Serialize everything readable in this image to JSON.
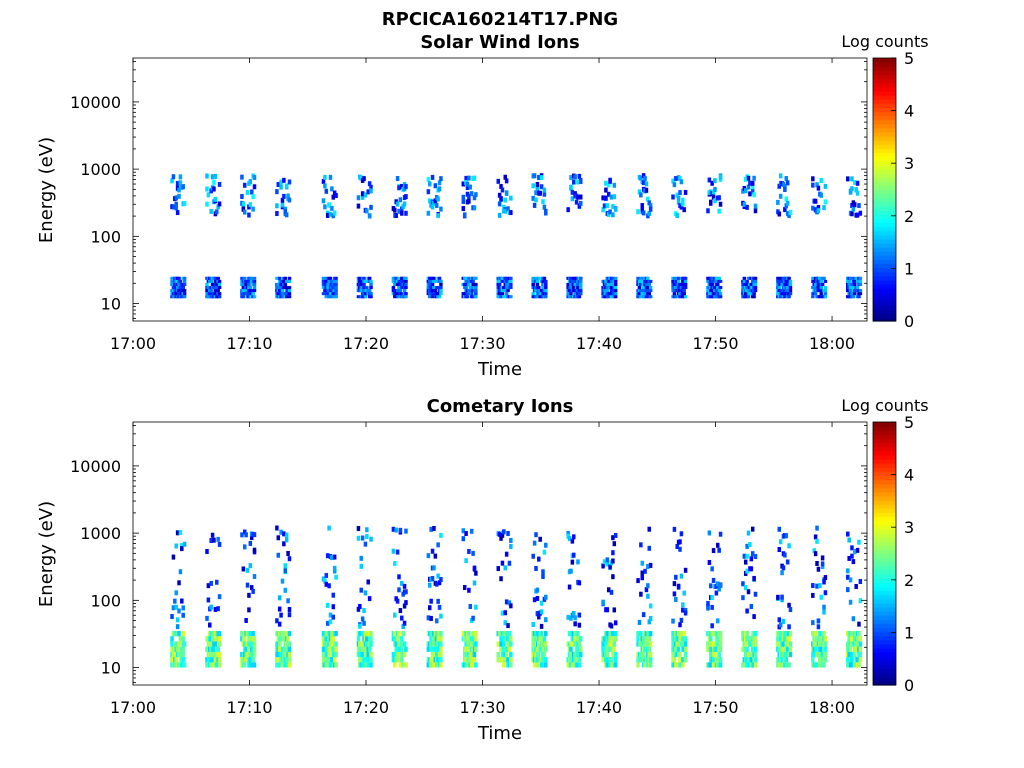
{
  "figure": {
    "title": "RPCICA160214T17.PNG"
  },
  "colorbar": {
    "label": "Log counts",
    "ticks": [
      "5",
      "4",
      "3",
      "2",
      "1",
      "0"
    ]
  },
  "chart_data": [
    {
      "type": "heatmap",
      "title": "Solar Wind Ions",
      "xlabel": "Time",
      "ylabel": "Energy (eV)",
      "x_ticks": [
        "17:00",
        "17:10",
        "17:20",
        "17:30",
        "17:40",
        "17:50",
        "18:00"
      ],
      "x_range": [
        "17:00",
        "18:03"
      ],
      "y_ticks": [
        "10",
        "100",
        "1000",
        "10000"
      ],
      "y_scale": "log",
      "y_range": [
        5.5,
        45000
      ],
      "colorbar": {
        "label": "Log counts",
        "range": [
          0,
          5
        ],
        "colormap": "jet"
      },
      "sweep_start_times": [
        "17:03",
        "17:06",
        "17:09",
        "17:12",
        "17:16",
        "17:19",
        "17:22",
        "17:25",
        "17:28",
        "17:31",
        "17:34",
        "17:37",
        "17:40",
        "17:43",
        "17:46",
        "17:49",
        "17:52",
        "17:55",
        "17:58",
        "18:01"
      ],
      "low_energy_band_eV": [
        12,
        25
      ],
      "low_energy_level": 1.0,
      "high_energy_band_eV": [
        200,
        800
      ],
      "high_energy_level": 1.1
    },
    {
      "type": "heatmap",
      "title": "Cometary Ions",
      "xlabel": "Time",
      "ylabel": "Energy (eV)",
      "x_ticks": [
        "17:00",
        "17:10",
        "17:20",
        "17:30",
        "17:40",
        "17:50",
        "18:00"
      ],
      "x_range": [
        "17:00",
        "18:03"
      ],
      "y_ticks": [
        "10",
        "100",
        "1000",
        "10000"
      ],
      "y_scale": "log",
      "y_range": [
        5.5,
        45000
      ],
      "colorbar": {
        "label": "Log counts",
        "range": [
          0,
          5
        ],
        "colormap": "jet"
      },
      "sweep_start_times": [
        "17:03",
        "17:06",
        "17:09",
        "17:12",
        "17:16",
        "17:19",
        "17:22",
        "17:25",
        "17:28",
        "17:31",
        "17:34",
        "17:37",
        "17:40",
        "17:43",
        "17:46",
        "17:49",
        "17:52",
        "17:55",
        "17:58",
        "18:01"
      ],
      "low_energy_band_eV": [
        10,
        35
      ],
      "low_energy_level": 2.3,
      "high_energy_band_eV": [
        40,
        1200
      ],
      "high_energy_level": 1.0
    }
  ]
}
